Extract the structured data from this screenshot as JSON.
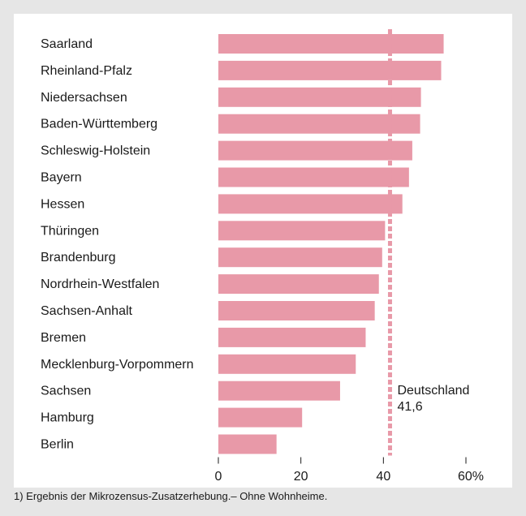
{
  "chart_data": {
    "type": "bar",
    "orientation": "horizontal",
    "categories": [
      "Saarland",
      "Rheinland-Pfalz",
      "Niedersachsen",
      "Baden-Württemberg",
      "Schleswig-Holstein",
      "Bayern",
      "Hessen",
      "Thüringen",
      "Brandenburg",
      "Nordrhein-Westfalen",
      "Sachsen-Anhalt",
      "Bremen",
      "Mecklenburg-Vorpommern",
      "Sachsen",
      "Hamburg",
      "Berlin"
    ],
    "values": [
      54.6,
      54.0,
      49.1,
      48.9,
      47.0,
      46.2,
      44.6,
      40.4,
      39.7,
      38.9,
      37.9,
      35.7,
      33.3,
      29.5,
      20.3,
      14.1
    ],
    "xlim": [
      0,
      60
    ],
    "xticks": [
      "0",
      "20",
      "40",
      "60%"
    ],
    "xtick_values": [
      0,
      20,
      40,
      60
    ],
    "reference_line": {
      "label": "Deutschland",
      "value_label": "41,6",
      "value": 41.6
    },
    "bar_color": "#e899a8",
    "reference_color": "#e899a8",
    "grid": false,
    "footnote": "1) Ergebnis der Mikrozensus-Zusatzerhebung.– Ohne Wohnheime."
  }
}
